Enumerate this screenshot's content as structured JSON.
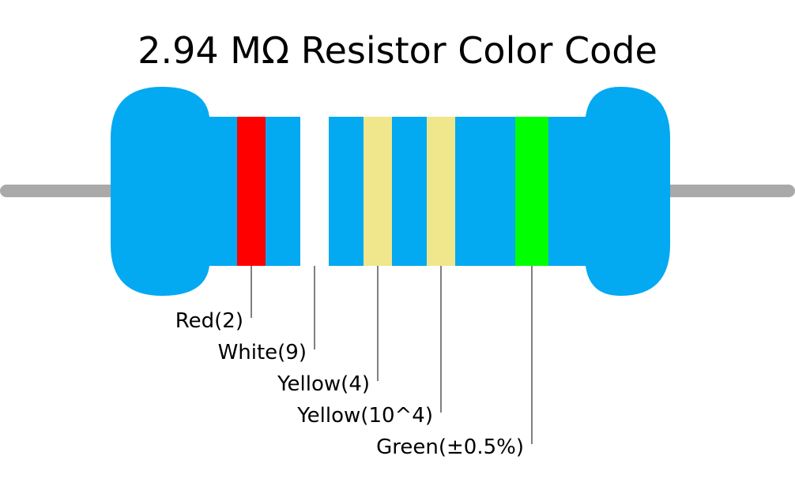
{
  "title": "2.94 MΩ Resistor Color Code",
  "bands": [
    {
      "label": "Red(2)",
      "color": "#ff0000"
    },
    {
      "label": "White(9)",
      "color": "#ffffff"
    },
    {
      "label": "Yellow(4)",
      "color": "#f0e68c"
    },
    {
      "label": "Yellow(10^4)",
      "color": "#f0e68c"
    },
    {
      "label": "Green(±0.5%)",
      "color": "#00ff00"
    }
  ]
}
